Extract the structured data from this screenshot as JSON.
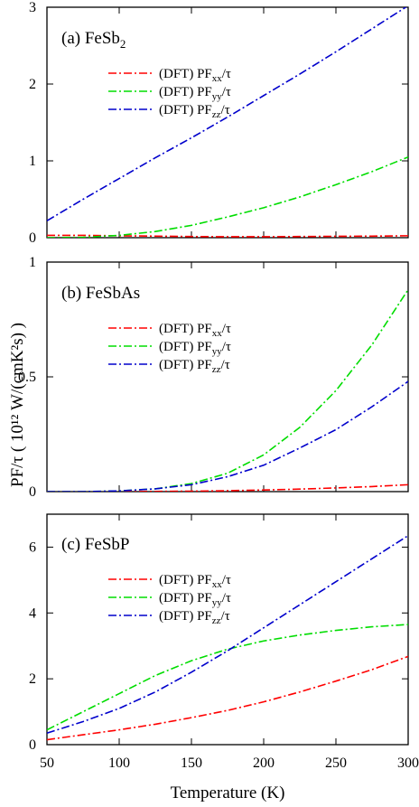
{
  "figure": {
    "ylabel": "PF/τ ( 10¹² W/(cmK²s) )",
    "xlabel": "Temperature (K)"
  },
  "colors": {
    "xx": "#ff0000",
    "yy": "#00dd00",
    "zz": "#0000cc"
  },
  "chart_data": [
    {
      "type": "line",
      "title": "(a) FeSb2",
      "title_main": "(a) FeSb",
      "title_sub": "2",
      "xlim": [
        50,
        300
      ],
      "ylim": [
        0,
        3
      ],
      "yticks": [
        0,
        1,
        2,
        3
      ],
      "xticks": [
        50,
        100,
        150,
        200,
        250,
        300
      ],
      "x": [
        50,
        75,
        100,
        125,
        150,
        175,
        200,
        225,
        250,
        275,
        300
      ],
      "series": [
        {
          "name": "(DFT) PFxx/τ",
          "prefix": "(DFT) PF",
          "sub": "xx",
          "suffix": "/τ",
          "key": "xx",
          "values": [
            0.03,
            0.03,
            0.025,
            0.02,
            0.015,
            0.012,
            0.012,
            0.015,
            0.018,
            0.02,
            0.025
          ]
        },
        {
          "name": "(DFT) PFyy/τ",
          "prefix": "(DFT) PF",
          "sub": "yy",
          "suffix": "/τ",
          "key": "yy",
          "values": [
            0.0,
            0.005,
            0.03,
            0.08,
            0.16,
            0.27,
            0.39,
            0.53,
            0.69,
            0.86,
            1.05
          ]
        },
        {
          "name": "(DFT) PFzz/τ",
          "prefix": "(DFT) PF",
          "sub": "zz",
          "suffix": "/τ",
          "key": "zz",
          "values": [
            0.22,
            0.5,
            0.77,
            1.04,
            1.3,
            1.57,
            1.85,
            2.13,
            2.42,
            2.72,
            3.02
          ]
        }
      ]
    },
    {
      "type": "line",
      "title": "(b) FeSbAs",
      "title_main": "(b) FeSbAs",
      "title_sub": "",
      "xlim": [
        50,
        300
      ],
      "ylim": [
        0,
        1
      ],
      "yticks": [
        0,
        0.5,
        1
      ],
      "ytick_labels": [
        "0",
        "0.5",
        "1"
      ],
      "xticks": [
        50,
        100,
        150,
        200,
        250,
        300
      ],
      "x": [
        50,
        75,
        100,
        125,
        150,
        175,
        200,
        225,
        250,
        275,
        300
      ],
      "series": [
        {
          "name": "(DFT) PFxx/τ",
          "prefix": "(DFT) PF",
          "sub": "xx",
          "suffix": "/τ",
          "key": "xx",
          "values": [
            0.0,
            0.0,
            0.0,
            0.001,
            0.002,
            0.004,
            0.007,
            0.011,
            0.016,
            0.022,
            0.03
          ]
        },
        {
          "name": "(DFT) PFyy/τ",
          "prefix": "(DFT) PF",
          "sub": "yy",
          "suffix": "/τ",
          "key": "yy",
          "values": [
            0.0,
            0.0,
            0.003,
            0.012,
            0.035,
            0.08,
            0.16,
            0.28,
            0.44,
            0.64,
            0.88
          ]
        },
        {
          "name": "(DFT) PFzz/τ",
          "prefix": "(DFT) PF",
          "sub": "zz",
          "suffix": "/τ",
          "key": "zz",
          "values": [
            0.0,
            0.0,
            0.003,
            0.012,
            0.03,
            0.065,
            0.115,
            0.19,
            0.27,
            0.37,
            0.48
          ]
        }
      ]
    },
    {
      "type": "line",
      "title": "(c) FeSbP",
      "title_main": "(c) FeSbP",
      "title_sub": "",
      "xlim": [
        50,
        300
      ],
      "ylim": [
        0,
        7
      ],
      "yticks": [
        0,
        2,
        4,
        6
      ],
      "xticks": [
        50,
        100,
        150,
        200,
        250,
        300
      ],
      "x": [
        50,
        75,
        100,
        125,
        150,
        175,
        200,
        225,
        250,
        275,
        300
      ],
      "series": [
        {
          "name": "(DFT) PFxx/τ",
          "prefix": "(DFT) PF",
          "sub": "xx",
          "suffix": "/τ",
          "key": "xx",
          "values": [
            0.15,
            0.3,
            0.45,
            0.62,
            0.82,
            1.04,
            1.3,
            1.6,
            1.93,
            2.28,
            2.68
          ]
        },
        {
          "name": "(DFT) PFyy/τ",
          "prefix": "(DFT) PF",
          "sub": "yy",
          "suffix": "/τ",
          "key": "yy",
          "values": [
            0.45,
            1.0,
            1.55,
            2.1,
            2.55,
            2.9,
            3.15,
            3.33,
            3.47,
            3.58,
            3.65
          ]
        },
        {
          "name": "(DFT) PFzz/τ",
          "prefix": "(DFT) PF",
          "sub": "zz",
          "suffix": "/τ",
          "key": "zz",
          "values": [
            0.35,
            0.7,
            1.1,
            1.6,
            2.2,
            2.85,
            3.55,
            4.25,
            4.95,
            5.65,
            6.35
          ]
        }
      ]
    }
  ]
}
